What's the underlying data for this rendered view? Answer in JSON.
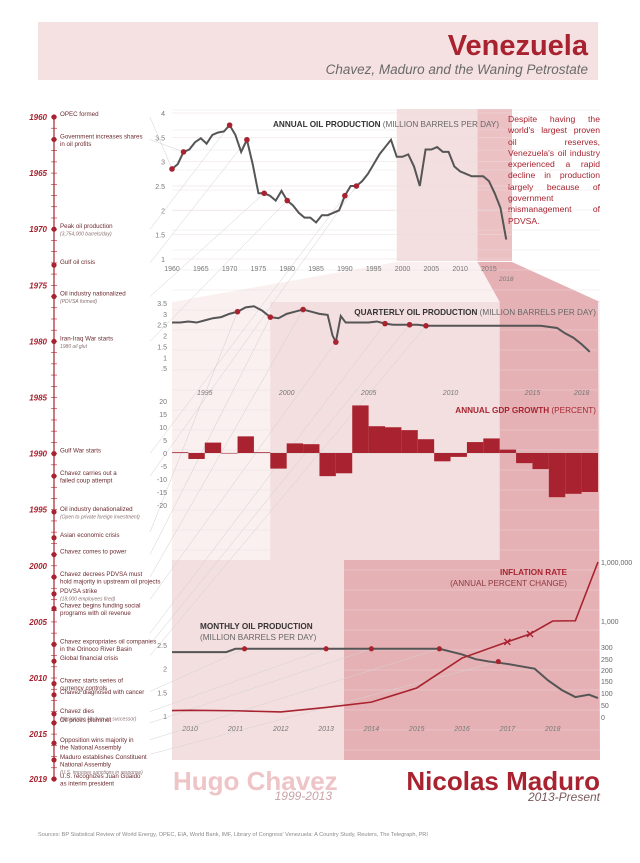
{
  "header": {
    "title": "Venezuela",
    "subtitle": "Chavez, Maduro and the Waning Petrostate"
  },
  "colors": {
    "accent": "#a8232f",
    "light_pink": "#f6e1e2",
    "mid_pink": "#ecc1c4",
    "chavez_band": "#f4dfe0",
    "maduro_band": "#e6b1b5",
    "line": "#555555",
    "grid": "#e8dedf"
  },
  "intro": "Despite having the world's largest proven oil reserves, Venezuela's oil industry experienced a rapid decline in production largely because of government mismanagement of PDVSA.",
  "timeline": {
    "years": [
      {
        "label": "1960",
        "year": 1960
      },
      {
        "label": "1965",
        "year": 1965
      },
      {
        "label": "1970",
        "year": 1970
      },
      {
        "label": "1975",
        "year": 1975
      },
      {
        "label": "1980",
        "year": 1980
      },
      {
        "label": "1985",
        "year": 1985
      },
      {
        "label": "1990",
        "year": 1990
      },
      {
        "label": "1995",
        "year": 1995
      },
      {
        "label": "2000",
        "year": 2000
      },
      {
        "label": "2005",
        "year": 2005
      },
      {
        "label": "2010",
        "year": 2010
      },
      {
        "label": "2015",
        "year": 2015
      },
      {
        "label": "2019",
        "year": 2019
      }
    ],
    "events": [
      {
        "year": 1960.0,
        "lines": [
          "OPEC formed"
        ]
      },
      {
        "year": 1962.0,
        "lines": [
          "Government increases shares",
          "in oil profits"
        ]
      },
      {
        "year": 1970.0,
        "lines": [
          "Peak oil production"
        ],
        "note": "(3,754,000 barrels/day)"
      },
      {
        "year": 1973.2,
        "lines": [
          "Gulf oil crisis"
        ]
      },
      {
        "year": 1976.0,
        "lines": [
          "Oil industry nationalized"
        ],
        "note": "(PDVSA formed)"
      },
      {
        "year": 1980.0,
        "lines": [
          "Iran-Iraq War starts"
        ],
        "note": "1980 oil glut"
      },
      {
        "year": 1990.0,
        "lines": [
          "Gulf War starts"
        ]
      },
      {
        "year": 1992.0,
        "lines": [
          "Chavez carries out a",
          "failed coup attempt"
        ]
      },
      {
        "year": 1995.2,
        "lines": [
          "Oil industry denationalized"
        ],
        "note": "(Open to private foreign investment)"
      },
      {
        "year": 1997.5,
        "lines": [
          "Asian economic crisis"
        ]
      },
      {
        "year": 1999.0,
        "lines": [
          "Chavez comes to power"
        ]
      },
      {
        "year": 2001.0,
        "lines": [
          "Chavez decrees PDVSA must",
          "hold majority in upstream oil projects"
        ]
      },
      {
        "year": 2002.5,
        "lines": [
          "PDVSA strike"
        ],
        "note": "(18,000 employees fired)"
      },
      {
        "year": 2003.8,
        "lines": [
          "Chavez begins funding social",
          "programs with oil revenue"
        ]
      },
      {
        "year": 2007.0,
        "lines": [
          "Chavez expropriates oil companies",
          "in the Orinoco River Basin"
        ]
      },
      {
        "year": 2008.5,
        "lines": [
          "Global financial crisis"
        ]
      },
      {
        "year": 2010.5,
        "lines": [
          "Chavez starts series of",
          "currency controls"
        ]
      },
      {
        "year": 2011.5,
        "lines": [
          "Chavez diagnosed with cancer"
        ]
      },
      {
        "year": 2013.2,
        "lines": [
          "Chavez dies"
        ],
        "note": "(designates Maduro as successor)"
      },
      {
        "year": 2014.0,
        "lines": [
          "Oil prices plummet"
        ]
      },
      {
        "year": 2015.8,
        "lines": [
          "Opposition wins majority in",
          "the National Assembly"
        ]
      },
      {
        "year": 2017.3,
        "lines": [
          "Maduro establishes Constituent",
          "National Assembly"
        ],
        "note": "(U.S. imposes sanctions in response)"
      },
      {
        "year": 2019.0,
        "lines": [
          "U.S. recognizes Juan Guaido",
          "as interim president"
        ]
      }
    ]
  },
  "chart_data": [
    {
      "type": "line",
      "title": "ANNUAL OIL PRODUCTION",
      "unit": "(MILLION BARRELS PER DAY)",
      "x": [
        1960,
        1961,
        1962,
        1963,
        1964,
        1965,
        1966,
        1967,
        1968,
        1969,
        1970,
        1971,
        1972,
        1973,
        1974,
        1975,
        1976,
        1977,
        1978,
        1979,
        1980,
        1981,
        1982,
        1983,
        1984,
        1985,
        1986,
        1987,
        1988,
        1989,
        1990,
        1991,
        1992,
        1993,
        1994,
        1995,
        1996,
        1997,
        1998,
        1999,
        2000,
        2001,
        2002,
        2003,
        2004,
        2005,
        2006,
        2007,
        2008,
        2009,
        2010,
        2011,
        2012,
        2013,
        2014,
        2015,
        2016,
        2017,
        2018
      ],
      "y": [
        2.85,
        2.95,
        3.2,
        3.25,
        3.4,
        3.48,
        3.37,
        3.55,
        3.6,
        3.62,
        3.75,
        3.55,
        3.2,
        3.45,
        2.95,
        2.35,
        2.35,
        2.3,
        2.2,
        2.4,
        2.2,
        2.1,
        1.95,
        1.85,
        1.85,
        1.75,
        1.9,
        1.9,
        1.95,
        2.0,
        2.3,
        2.5,
        2.5,
        2.6,
        2.75,
        2.95,
        3.15,
        3.3,
        3.45,
        3.1,
        3.1,
        3.15,
        2.9,
        2.5,
        3.25,
        3.25,
        3.3,
        3.2,
        3.2,
        2.9,
        2.8,
        2.75,
        2.7,
        2.7,
        2.7,
        2.6,
        2.35,
        2.05,
        1.4
      ],
      "highlight_x": [
        1960,
        1962,
        1970,
        1973,
        1976,
        1980,
        1990,
        1992
      ],
      "xlim": [
        1960,
        2019
      ],
      "ylim": [
        1,
        4
      ],
      "xticks": [
        "1960",
        "1965",
        "1970",
        "1975",
        "1980",
        "1985",
        "1990",
        "1995",
        "2000",
        "2005",
        "2010",
        "2015"
      ],
      "x_end_label": "2018",
      "yticks": [
        "1",
        "1.5",
        "2",
        "2.5",
        "3",
        "3.5",
        "4"
      ]
    },
    {
      "type": "line",
      "title": "QUARTERLY OIL PRODUCTION",
      "unit": "(MILLION BARRELS PER DAY)",
      "x": [
        1993.0,
        1993.5,
        1994.0,
        1994.5,
        1995.0,
        1995.5,
        1996.0,
        1996.5,
        1997.0,
        1997.5,
        1998.0,
        1998.5,
        1999.0,
        1999.5,
        2000.0,
        2000.5,
        2001.0,
        2001.5,
        2002.0,
        2002.5,
        2002.8,
        2003.0,
        2003.3,
        2003.6,
        2004.0,
        2004.5,
        2005.0,
        2005.5,
        2006.0,
        2006.5,
        2007.0,
        2007.5,
        2008.0,
        2008.5,
        2009.0,
        2009.5,
        2010.0,
        2010.5,
        2011.0,
        2011.5,
        2012.0,
        2012.5,
        2013.0,
        2013.5,
        2014.0,
        2014.5,
        2015.0,
        2015.5,
        2016.0,
        2016.5,
        2017.0,
        2017.5,
        2018.0,
        2018.5
      ],
      "y": [
        2.6,
        2.6,
        2.65,
        2.6,
        2.7,
        2.8,
        2.85,
        3.0,
        3.1,
        3.3,
        3.35,
        3.15,
        2.85,
        2.8,
        3.0,
        3.1,
        3.2,
        3.1,
        3.0,
        2.95,
        2.0,
        1.7,
        2.9,
        2.6,
        2.6,
        2.6,
        2.6,
        2.65,
        2.55,
        2.5,
        2.5,
        2.5,
        2.5,
        2.45,
        2.45,
        2.45,
        2.45,
        2.45,
        2.45,
        2.45,
        2.45,
        2.45,
        2.45,
        2.45,
        2.45,
        2.45,
        2.45,
        2.45,
        2.4,
        2.35,
        2.1,
        1.9,
        1.6,
        1.25
      ],
      "highlight_x": [
        1997.0,
        1999.0,
        2001.0,
        2003.0,
        2006.0,
        2007.5,
        2008.5
      ],
      "xlim": [
        1993,
        2019
      ],
      "ylim": [
        0,
        3.5
      ],
      "xticks": [
        "1995",
        "2000",
        "2005",
        "2010",
        "2015",
        "2018"
      ],
      "yticks": [
        ".5",
        "1",
        "1.5",
        "2",
        "2.5",
        "3",
        "3.5"
      ]
    },
    {
      "type": "bar",
      "title": "ANNUAL GDP GROWTH",
      "unit": "(PERCENT)",
      "categories": [
        "1993",
        "1994",
        "1995",
        "1996",
        "1997",
        "1998",
        "1999",
        "2000",
        "2001",
        "2002",
        "2003",
        "2004",
        "2005",
        "2006",
        "2007",
        "2008",
        "2009",
        "2010",
        "2011",
        "2012",
        "2013",
        "2014",
        "2015",
        "2016",
        "2017",
        "2018"
      ],
      "values": [
        0.3,
        -2.3,
        4.0,
        -0.2,
        6.4,
        0.3,
        -6.0,
        3.7,
        3.4,
        -8.9,
        -7.8,
        18.3,
        10.3,
        9.9,
        8.8,
        5.3,
        -3.2,
        -1.5,
        4.2,
        5.6,
        1.3,
        -3.9,
        -6.2,
        -17.0,
        -15.7,
        -15.0
      ],
      "xlim": [
        1993,
        2019
      ],
      "ylim": [
        -20,
        20
      ],
      "yticks": [
        "-20",
        "-15",
        "-10",
        "-5",
        "0",
        "5",
        "10",
        "15",
        "20"
      ]
    },
    {
      "type": "line",
      "title": "MONTHLY OIL PRODUCTION",
      "unit": "(MILLION BARRELS PER DAY)",
      "x": [
        2009.6,
        2010.0,
        2010.5,
        2010.8,
        2011.0,
        2011.2,
        2011.5,
        2012.0,
        2012.5,
        2013.0,
        2013.5,
        2014.0,
        2014.5,
        2015.0,
        2015.5,
        2016.0,
        2016.3,
        2016.6,
        2017.0,
        2017.3,
        2017.6,
        2017.9,
        2018.2,
        2018.5,
        2018.8,
        2019.0
      ],
      "y": [
        2.35,
        2.35,
        2.35,
        2.35,
        2.42,
        2.42,
        2.42,
        2.42,
        2.42,
        2.42,
        2.42,
        2.42,
        2.42,
        2.42,
        2.42,
        2.3,
        2.2,
        2.15,
        2.1,
        2.05,
        2.0,
        1.75,
        1.55,
        1.4,
        1.45,
        1.38
      ],
      "highlight_x": [
        2011.2,
        2013.0,
        2014.0,
        2015.5,
        2016.8
      ],
      "xlim": [
        2009.6,
        2019
      ],
      "ylim": [
        1,
        2.5
      ],
      "xticks": [
        "2010",
        "2011",
        "2012",
        "2013",
        "2014",
        "2015",
        "2016",
        "2017",
        "2018"
      ],
      "yticks": [
        "1",
        "1.5",
        "2",
        "2.5"
      ]
    },
    {
      "type": "line",
      "title": "INFLATION RATE",
      "unit": "(ANNUAL PERCENT CHANGE)",
      "x": [
        2009.6,
        2010.0,
        2011.0,
        2012.0,
        2013.0,
        2014.0,
        2015.0,
        2016.0,
        2017.0,
        2017.5,
        2018.0,
        2018.5,
        2019.0
      ],
      "y": [
        27,
        28,
        26,
        21,
        40,
        62,
        121,
        254,
        438,
        650,
        1000,
        5000,
        1000000
      ],
      "markers_x": [
        2017.0,
        2017.5
      ],
      "yticks": [
        "0",
        "50",
        "100",
        "150",
        "200",
        "250",
        "300",
        "1,000",
        "1,000,000"
      ]
    }
  ],
  "leaders": {
    "chavez": {
      "name": "Hugo Chavez",
      "years": "1999-2013"
    },
    "maduro": {
      "name": "Nicolas Maduro",
      "years": "2013-Present"
    }
  },
  "sources": "Sources: BP Statistical Review of World Energy, OPEC, EIA, World Bank, IMF, Library of Congress' Venezuela: A Country Study, Reuters, The Telegraph, PRI"
}
